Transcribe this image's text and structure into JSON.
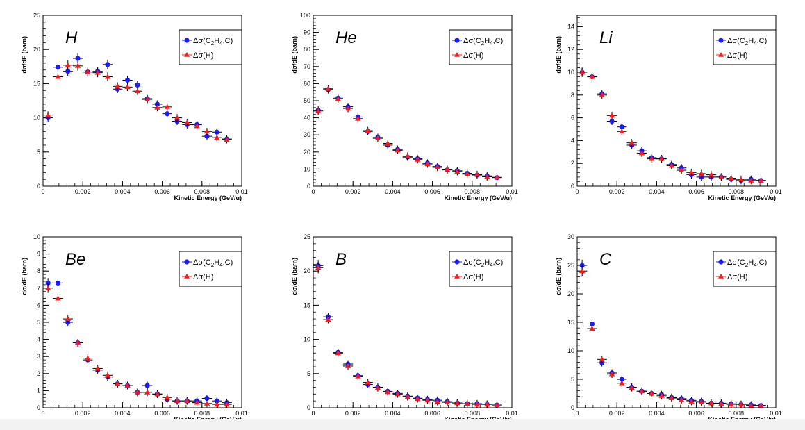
{
  "figure": {
    "series_styles": {
      "c2h4c": {
        "color": "#1a1aff",
        "marker": "circle"
      },
      "h": {
        "color": "#ff1a1a",
        "marker": "triangle"
      }
    }
  },
  "chart_data": [
    {
      "type": "scatter",
      "label": "H",
      "xlabel": "Kinetic Energy (GeV/u)",
      "ylabel": "dσ/dE (barn)",
      "xlim": [
        0,
        0.01
      ],
      "ylim": [
        0,
        25
      ],
      "xticks": [
        "0",
        "0.002",
        "0.004",
        "0.006",
        "0.008",
        "0.01"
      ],
      "yticks": [
        "0",
        "5",
        "10",
        "15",
        "20",
        "25"
      ],
      "x": [
        0.00025,
        0.00075,
        0.00125,
        0.00175,
        0.00225,
        0.00275,
        0.00325,
        0.00375,
        0.00425,
        0.00475,
        0.00525,
        0.00575,
        0.00625,
        0.00675,
        0.00725,
        0.00775,
        0.00825,
        0.00875,
        0.00925
      ],
      "series": [
        {
          "name": "Δσ(C2H4,C)",
          "legend_main": "Δσ(C",
          "legend_sub1": "2",
          "legend_mid": "H",
          "legend_sub2": "4",
          "legend_end": ",C)",
          "key": "c2h4c",
          "values": [
            10.0,
            17.4,
            16.8,
            18.7,
            16.7,
            16.8,
            17.8,
            14.2,
            15.5,
            14.8,
            12.8,
            12.0,
            10.6,
            9.5,
            9.0,
            9.0,
            7.3,
            7.9,
            6.9
          ]
        },
        {
          "name": "Δσ(H)",
          "legend_main": "Δσ(H)",
          "key": "h",
          "values": [
            10.4,
            16.0,
            17.7,
            17.6,
            16.7,
            16.6,
            16.0,
            14.6,
            14.5,
            13.9,
            12.7,
            11.5,
            11.6,
            10.0,
            9.3,
            8.8,
            8.0,
            7.1,
            6.8
          ]
        }
      ]
    },
    {
      "type": "scatter",
      "label": "He",
      "xlabel": "Kinetic Energy (GeV/u)",
      "ylabel": "dσ/dE (barn)",
      "xlim": [
        0,
        0.01
      ],
      "ylim": [
        0,
        100
      ],
      "xticks": [
        "0",
        "0.002",
        "0.004",
        "0.006",
        "0.008",
        "0.01"
      ],
      "yticks": [
        "0",
        "10",
        "20",
        "30",
        "40",
        "50",
        "60",
        "70",
        "80",
        "90",
        "100"
      ],
      "x": [
        0.00025,
        0.00075,
        0.00125,
        0.00175,
        0.00225,
        0.00275,
        0.00325,
        0.00375,
        0.00425,
        0.00475,
        0.00525,
        0.00575,
        0.00625,
        0.00675,
        0.00725,
        0.00775,
        0.00825,
        0.00875,
        0.00925
      ],
      "series": [
        {
          "name": "Δσ(C2H4,C)",
          "legend_main": "Δσ(C",
          "legend_sub1": "2",
          "legend_mid": "H",
          "legend_sub2": "4",
          "legend_end": ",C)",
          "key": "c2h4c",
          "values": [
            44.5,
            56.5,
            51.5,
            46.5,
            40.5,
            32.0,
            28.5,
            24.0,
            21.5,
            17.0,
            16.0,
            13.5,
            11.5,
            9.5,
            9.0,
            7.5,
            6.5,
            6.0,
            5.0
          ]
        },
        {
          "name": "Δσ(H)",
          "legend_main": "Δσ(H)",
          "key": "h",
          "values": [
            44.0,
            57.0,
            51.0,
            45.5,
            39.5,
            32.5,
            28.0,
            25.0,
            21.0,
            17.5,
            15.5,
            13.0,
            11.0,
            9.8,
            8.5,
            7.0,
            6.8,
            5.5,
            5.2
          ]
        }
      ]
    },
    {
      "type": "scatter",
      "label": "Li",
      "xlabel": "Kinetic Energy (GeV/u)",
      "ylabel": "dσ/dE (barn)",
      "xlim": [
        0,
        0.01
      ],
      "ylim": [
        0,
        15
      ],
      "xticks": [
        "0",
        "0.002",
        "0.004",
        "0.006",
        "0.008",
        "0.01"
      ],
      "yticks": [
        "0",
        "2",
        "4",
        "6",
        "8",
        "10",
        "12",
        "14"
      ],
      "x": [
        0.00025,
        0.00075,
        0.00125,
        0.00175,
        0.00225,
        0.00275,
        0.00325,
        0.00375,
        0.00425,
        0.00475,
        0.00525,
        0.00575,
        0.00625,
        0.00675,
        0.00725,
        0.00775,
        0.00825,
        0.00875,
        0.00925
      ],
      "series": [
        {
          "name": "Δσ(C2H4,C)",
          "legend_main": "Δσ(C",
          "legend_sub1": "2",
          "legend_mid": "H",
          "legend_sub2": "4",
          "legend_end": ",C)",
          "key": "c2h4c",
          "values": [
            10.0,
            9.6,
            8.1,
            5.7,
            5.2,
            3.6,
            3.1,
            2.5,
            2.4,
            1.9,
            1.6,
            1.0,
            0.8,
            0.8,
            0.8,
            0.6,
            0.5,
            0.6,
            0.5
          ]
        },
        {
          "name": "Δσ(H)",
          "legend_main": "Δσ(H)",
          "key": "h",
          "values": [
            10.0,
            9.6,
            8.0,
            6.2,
            4.8,
            3.8,
            2.9,
            2.4,
            2.4,
            1.8,
            1.4,
            1.2,
            1.1,
            1.0,
            0.8,
            0.7,
            0.6,
            0.5,
            0.5
          ]
        }
      ]
    },
    {
      "type": "scatter",
      "label": "Be",
      "xlabel": "Kinetic Energy (GeV/u)",
      "ylabel": "dσ/dE (barn)",
      "xlim": [
        0,
        0.01
      ],
      "ylim": [
        0,
        10
      ],
      "xticks": [
        "0",
        "0.002",
        "0.004",
        "0.006",
        "0.008",
        "0.01"
      ],
      "yticks": [
        "0",
        "1",
        "2",
        "3",
        "4",
        "5",
        "6",
        "7",
        "8",
        "9",
        "10"
      ],
      "x": [
        0.00025,
        0.00075,
        0.00125,
        0.00175,
        0.00225,
        0.00275,
        0.00325,
        0.00375,
        0.00425,
        0.00475,
        0.00525,
        0.00575,
        0.00625,
        0.00675,
        0.00725,
        0.00775,
        0.00825,
        0.00875,
        0.00925
      ],
      "series": [
        {
          "name": "Δσ(C2H4,C)",
          "legend_main": "Δσ(C",
          "legend_sub1": "2",
          "legend_mid": "H",
          "legend_sub2": "4",
          "legend_end": ",C)",
          "key": "c2h4c",
          "values": [
            7.3,
            7.3,
            5.0,
            3.8,
            2.8,
            2.2,
            1.8,
            1.4,
            1.3,
            0.9,
            1.3,
            0.8,
            0.5,
            0.4,
            0.4,
            0.4,
            0.55,
            0.4,
            0.3
          ]
        },
        {
          "name": "Δσ(H)",
          "legend_main": "Δσ(H)",
          "key": "h",
          "values": [
            7.0,
            6.4,
            5.2,
            3.8,
            2.9,
            2.3,
            1.9,
            1.4,
            1.3,
            0.9,
            0.9,
            0.8,
            0.6,
            0.4,
            0.4,
            0.3,
            0.25,
            0.2,
            0.2
          ]
        }
      ]
    },
    {
      "type": "scatter",
      "label": "B",
      "xlabel": "Kinetic Energy (GeV/u)",
      "ylabel": "dσ/dE (barn)",
      "xlim": [
        0,
        0.01
      ],
      "ylim": [
        0,
        25
      ],
      "xticks": [
        "0",
        "0.002",
        "0.004",
        "0.006",
        "0.008",
        "0.01"
      ],
      "yticks": [
        "0",
        "5",
        "10",
        "15",
        "20",
        "25"
      ],
      "x": [
        0.00025,
        0.00075,
        0.00125,
        0.00175,
        0.00225,
        0.00275,
        0.00325,
        0.00375,
        0.00425,
        0.00475,
        0.00525,
        0.00575,
        0.00625,
        0.00675,
        0.00725,
        0.00775,
        0.00825,
        0.00875,
        0.00925
      ],
      "series": [
        {
          "name": "Δσ(C2H4,C)",
          "legend_main": "Δσ(C",
          "legend_sub1": "2",
          "legend_mid": "H",
          "legend_sub2": "4",
          "legend_end": ",C)",
          "key": "c2h4c",
          "values": [
            20.8,
            13.3,
            8.1,
            6.4,
            4.7,
            3.4,
            3.0,
            2.4,
            2.1,
            1.7,
            1.4,
            1.2,
            1.1,
            0.9,
            0.7,
            0.6,
            0.6,
            0.5,
            0.4
          ]
        },
        {
          "name": "Δσ(H)",
          "legend_main": "Δσ(H)",
          "key": "h",
          "values": [
            20.5,
            12.9,
            8.0,
            6.1,
            4.6,
            3.7,
            2.9,
            2.3,
            2.0,
            1.6,
            1.3,
            1.1,
            0.9,
            0.8,
            0.7,
            0.6,
            0.5,
            0.5,
            0.4
          ]
        }
      ]
    },
    {
      "type": "scatter",
      "label": "C",
      "xlabel": "Kinetic Energy (GeV/u)",
      "ylabel": "dσ/dE (barn)",
      "xlim": [
        0,
        0.01
      ],
      "ylim": [
        0,
        30
      ],
      "xticks": [
        "0",
        "0.002",
        "0.004",
        "0.006",
        "0.008",
        "0.01"
      ],
      "yticks": [
        "0",
        "5",
        "10",
        "15",
        "20",
        "25",
        "30"
      ],
      "x": [
        0.00025,
        0.00075,
        0.00125,
        0.00175,
        0.00225,
        0.00275,
        0.00325,
        0.00375,
        0.00425,
        0.00475,
        0.00525,
        0.00575,
        0.00625,
        0.00675,
        0.00725,
        0.00775,
        0.00825,
        0.00875,
        0.00925
      ],
      "series": [
        {
          "name": "Δσ(C2H4,C)",
          "legend_main": "Δσ(C",
          "legend_sub1": "2",
          "legend_mid": "H",
          "legend_sub2": "4",
          "legend_end": ",C)",
          "key": "c2h4c",
          "values": [
            25.0,
            14.7,
            7.9,
            6.1,
            5.0,
            3.6,
            2.9,
            2.5,
            2.3,
            1.8,
            1.6,
            1.3,
            1.1,
            0.8,
            0.8,
            0.7,
            0.6,
            0.5,
            0.4
          ]
        },
        {
          "name": "Δσ(H)",
          "legend_main": "Δσ(H)",
          "key": "h",
          "values": [
            24.0,
            13.9,
            8.5,
            5.9,
            4.3,
            3.5,
            2.9,
            2.5,
            2.1,
            1.7,
            1.4,
            1.1,
            1.0,
            0.8,
            0.7,
            0.6,
            0.6,
            0.4,
            0.4
          ]
        }
      ]
    }
  ]
}
